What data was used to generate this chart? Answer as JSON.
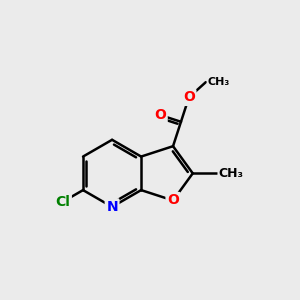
{
  "background_color": "#ebebeb",
  "bond_color": "#000000",
  "bond_width": 1.8,
  "atom_colors": {
    "O": "#ff0000",
    "N": "#0000ff",
    "Cl": "#008000",
    "C": "#000000"
  },
  "font_size_atoms": 10,
  "font_size_methyl": 9,
  "figsize": [
    3.0,
    3.0
  ],
  "dpi": 100
}
